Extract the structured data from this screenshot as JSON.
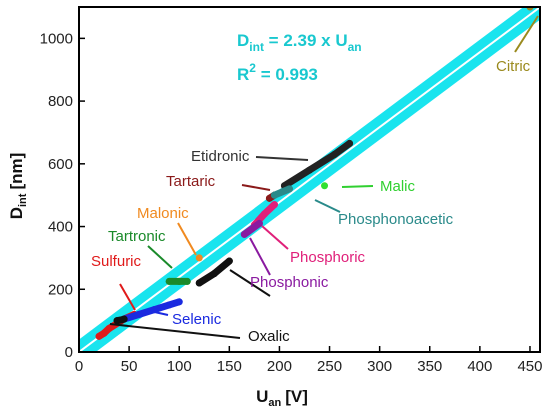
{
  "chart_data": {
    "type": "scatter",
    "title": "",
    "xlabel": "U",
    "xlabel_sub": "an",
    "xlabel_unit": "[V]",
    "ylabel": "D",
    "ylabel_sub": "int",
    "ylabel_unit": "[nm]",
    "xlim": [
      0,
      460
    ],
    "ylim": [
      0,
      1100
    ],
    "xticks": [
      0,
      50,
      100,
      150,
      200,
      250,
      300,
      350,
      400,
      450
    ],
    "yticks": [
      0,
      200,
      400,
      600,
      800,
      1000
    ],
    "grid": false,
    "fit": {
      "slope": 2.39,
      "eq_main": "D",
      "eq_sub1": "int",
      "eq_mid": " = 2.39 x U",
      "eq_sub2": "an",
      "r2_text": "R",
      "r2_sup": "2",
      "r2_value": " = 0.993",
      "line_color": "#ffffff",
      "band_color": "#19e4ee",
      "band_half_width_nm": 40
    },
    "series": [
      {
        "name": "Citric",
        "color": "#9a8a1e",
        "label_color": "#9a8a1e",
        "points": [
          [
            450,
            1100
          ]
        ]
      },
      {
        "name": "Etidronic",
        "color": "#222222",
        "label_color": "#333333",
        "points": [
          [
            205,
            530
          ],
          [
            230,
            580
          ],
          [
            255,
            630
          ],
          [
            270,
            665
          ]
        ]
      },
      {
        "name": "Malic",
        "color": "#30e030",
        "label_color": "#30d030",
        "points": [
          [
            245,
            530
          ]
        ]
      },
      {
        "name": "Tartaric",
        "color": "#8b1a1a",
        "label_color": "#8b1a1a",
        "points": [
          [
            190,
            490
          ],
          [
            195,
            500
          ]
        ]
      },
      {
        "name": "Phosphonoacetic",
        "color": "#2a8a8a",
        "label_color": "#2a8a8a",
        "points": [
          [
            195,
            500
          ],
          [
            210,
            520
          ]
        ]
      },
      {
        "name": "Malonic",
        "color": "#f08a20",
        "label_color": "#f08a20",
        "points": [
          [
            120,
            300
          ]
        ]
      },
      {
        "name": "Phosphoric",
        "color": "#e0207a",
        "label_color": "#e0207a",
        "points": [
          [
            175,
            405
          ],
          [
            185,
            440
          ],
          [
            195,
            470
          ]
        ]
      },
      {
        "name": "Phosphonic",
        "color": "#8a1aa0",
        "label_color": "#8a1aa0",
        "points": [
          [
            165,
            375
          ],
          [
            180,
            410
          ]
        ]
      },
      {
        "name": "Tartronic",
        "color": "#1a8a2a",
        "label_color": "#1a8a2a",
        "points": [
          [
            90,
            225
          ],
          [
            100,
            225
          ],
          [
            108,
            225
          ]
        ]
      },
      {
        "name": "Sulfuric",
        "color": "#e01a1a",
        "label_color": "#e01a1a",
        "points": [
          [
            20,
            50
          ],
          [
            25,
            60
          ],
          [
            30,
            75
          ],
          [
            45,
            105
          ],
          [
            55,
            120
          ]
        ]
      },
      {
        "name": "Selenic",
        "color": "#1a2ae0",
        "label_color": "#1a2ae0",
        "points": [
          [
            45,
            105
          ],
          [
            60,
            120
          ],
          [
            75,
            135
          ],
          [
            90,
            150
          ],
          [
            100,
            160
          ]
        ]
      },
      {
        "name": "Oxalic",
        "color": "#111111",
        "label_color": "#111111",
        "points": [
          [
            38,
            100
          ],
          [
            42,
            102
          ],
          [
            45,
            105
          ],
          [
            120,
            220
          ],
          [
            135,
            250
          ],
          [
            150,
            290
          ]
        ]
      }
    ]
  },
  "labels": {
    "citric": "Citric",
    "etidronic": "Etidronic",
    "malic": "Malic",
    "tartaric": "Tartaric",
    "phosphonoacetic": "Phosphonoacetic",
    "malonic": "Malonic",
    "phosphoric": "Phosphoric",
    "phosphonic": "Phosphonic",
    "tartronic": "Tartronic",
    "sulfuric": "Sulfuric",
    "selenic": "Selenic",
    "oxalic": "Oxalic"
  }
}
